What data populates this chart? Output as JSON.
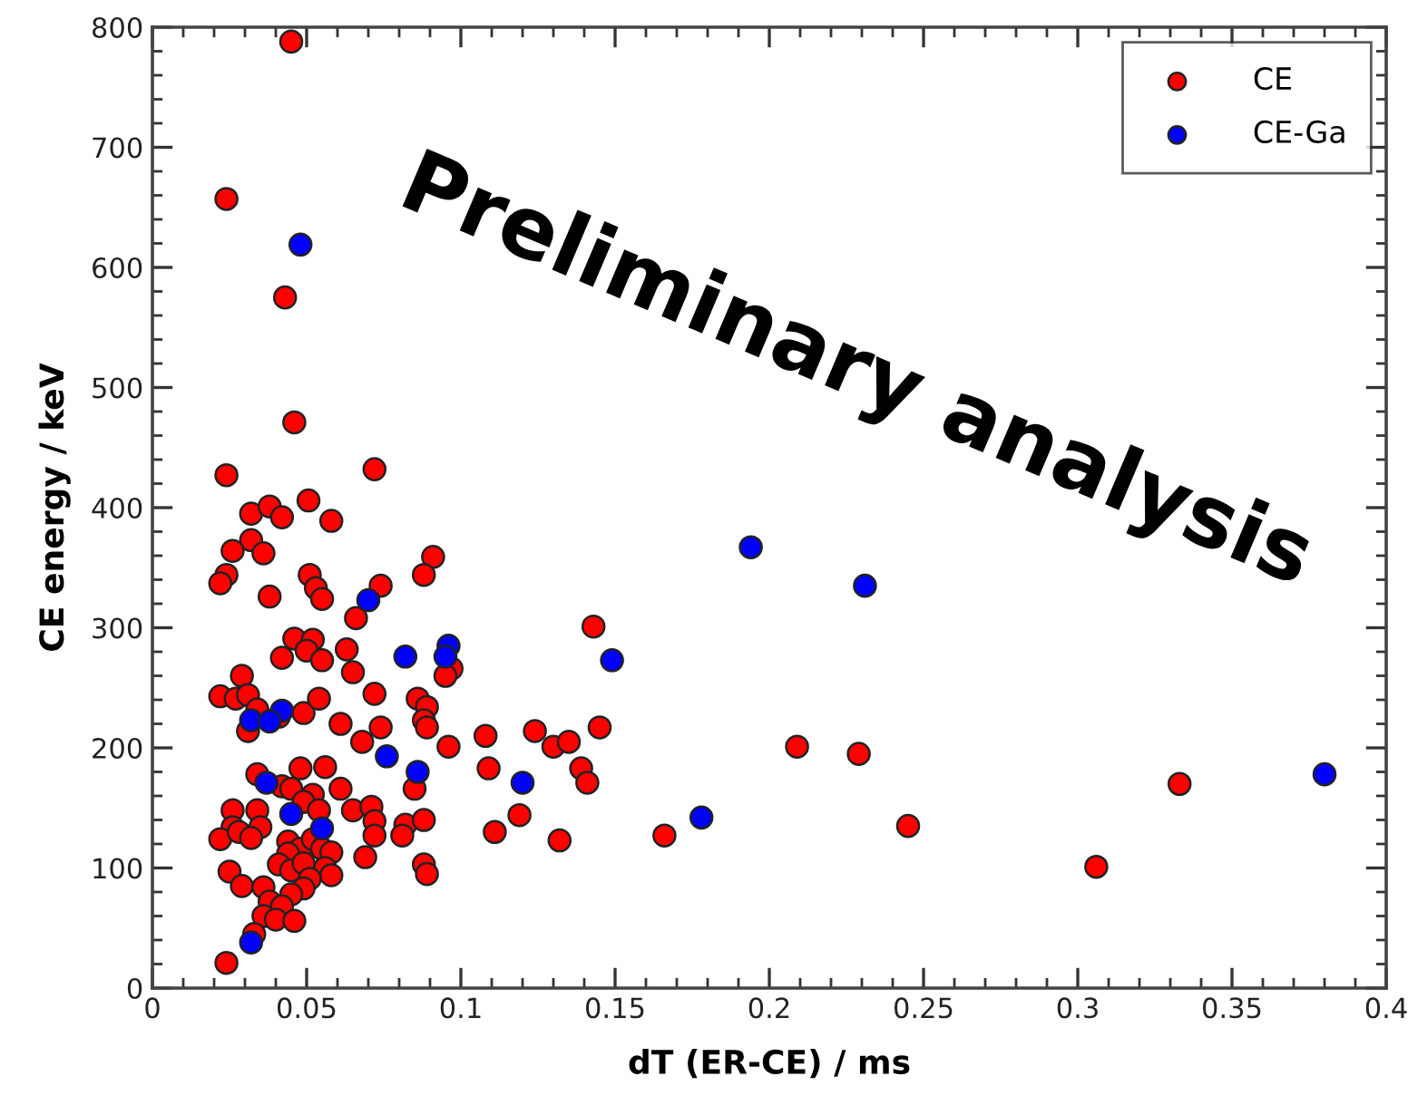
{
  "chart_data": {
    "type": "scatter",
    "xlabel": "dT (ER-CE) / ms",
    "ylabel": "CE energy / keV",
    "xlim": [
      0,
      0.4
    ],
    "ylim": [
      0,
      800
    ],
    "xticks": [
      0,
      0.05,
      0.1,
      0.15,
      0.2,
      0.25,
      0.3,
      0.35,
      0.4
    ],
    "yticks": [
      0,
      100,
      200,
      300,
      400,
      500,
      600,
      700,
      800
    ],
    "grid": false,
    "legend": "top right",
    "marker": "circle",
    "annotations": [
      "Preliminary analysis"
    ],
    "series": [
      {
        "name": "CE",
        "color": "#ff0000",
        "x": [
          0.045,
          0.024,
          0.043,
          0.046,
          0.024,
          0.072,
          0.0506,
          0.032,
          0.038,
          0.042,
          0.058,
          0.032,
          0.026,
          0.036,
          0.091,
          0.088,
          0.024,
          0.022,
          0.051,
          0.053,
          0.055,
          0.038,
          0.074,
          0.066,
          0.046,
          0.052,
          0.042,
          0.05,
          0.055,
          0.063,
          0.097,
          0.095,
          0.065,
          0.029,
          0.022,
          0.027,
          0.031,
          0.034,
          0.031,
          0.041,
          0.049,
          0.054,
          0.072,
          0.086,
          0.089,
          0.088,
          0.089,
          0.061,
          0.074,
          0.068,
          0.096,
          0.108,
          0.109,
          0.111,
          0.085,
          0.034,
          0.048,
          0.056,
          0.042,
          0.045,
          0.061,
          0.052,
          0.049,
          0.054,
          0.065,
          0.071,
          0.072,
          0.072,
          0.082,
          0.081,
          0.088,
          0.026,
          0.026,
          0.034,
          0.035,
          0.022,
          0.028,
          0.032,
          0.044,
          0.048,
          0.052,
          0.055,
          0.058,
          0.044,
          0.041,
          0.045,
          0.049,
          0.056,
          0.058,
          0.051,
          0.049,
          0.045,
          0.069,
          0.088,
          0.089,
          0.025,
          0.029,
          0.036,
          0.038,
          0.042,
          0.036,
          0.04,
          0.046,
          0.033,
          0.024,
          0.143,
          0.145,
          0.124,
          0.13,
          0.135,
          0.139,
          0.141,
          0.119,
          0.132,
          0.166,
          0.209,
          0.229,
          0.245,
          0.306,
          0.333
        ],
        "values": [
          788,
          657,
          575,
          471,
          427,
          432,
          406,
          395,
          401,
          392,
          389,
          373,
          364,
          362,
          359,
          344,
          344,
          337,
          344,
          333,
          324,
          326,
          335,
          308,
          291,
          290,
          275,
          281,
          273,
          282,
          266,
          260,
          263,
          260,
          243,
          241,
          244,
          232,
          214,
          226,
          229,
          241,
          245,
          241,
          234,
          223,
          217,
          220,
          217,
          205,
          201,
          210,
          183,
          130,
          166,
          178,
          183,
          184,
          168,
          166,
          166,
          161,
          155,
          148,
          148,
          151,
          139,
          127,
          136,
          127,
          140,
          148,
          134,
          148,
          134,
          124,
          130,
          125,
          122,
          116,
          124,
          116,
          113,
          112,
          103,
          98,
          104,
          100,
          94,
          91,
          83,
          78,
          109,
          103,
          95,
          97,
          85,
          84,
          72,
          68,
          60,
          57,
          56,
          45,
          21,
          301,
          217,
          214,
          201,
          205,
          183,
          171,
          144,
          123,
          127,
          201,
          195,
          135,
          101,
          170
        ]
      },
      {
        "name": "CE-Ga",
        "color": "#0000ff",
        "x": [
          0.048,
          0.07,
          0.082,
          0.096,
          0.095,
          0.042,
          0.032,
          0.038,
          0.076,
          0.086,
          0.037,
          0.045,
          0.055,
          0.032,
          0.149,
          0.12,
          0.178,
          0.194,
          0.231,
          0.38
        ],
        "values": [
          619,
          323,
          276,
          285,
          276,
          231,
          223,
          222,
          193,
          180,
          171,
          145,
          133,
          38,
          273,
          171,
          142,
          367,
          335,
          178
        ]
      }
    ]
  }
}
